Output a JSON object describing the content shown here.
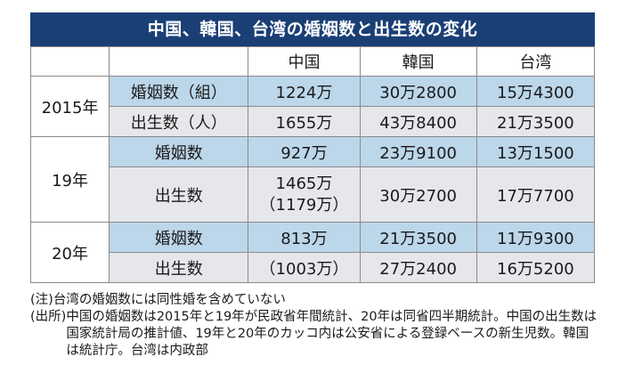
{
  "title": "中国、韓国、台湾の婚姻数と出生数の変化",
  "headers": {
    "cn": "中国",
    "kr": "韓国",
    "tw": "台湾"
  },
  "years": {
    "y2015": {
      "label": "2015年",
      "marriage": {
        "label": "婚姻数（組）",
        "cn": "1224万",
        "kr": "30万2800",
        "tw": "15万4300"
      },
      "birth": {
        "label": "出生数（人）",
        "cn": "1655万",
        "kr": "43万8400",
        "tw": "21万3500"
      }
    },
    "y19": {
      "label": "19年",
      "marriage": {
        "label": "婚姻数",
        "cn": "927万",
        "kr": "23万9100",
        "tw": "13万1500"
      },
      "birth": {
        "label": "出生数",
        "cn": "1465万",
        "cn_sub": "（1179万）",
        "kr": "30万2700",
        "tw": "17万7700"
      }
    },
    "y20": {
      "label": "20年",
      "marriage": {
        "label": "婚姻数",
        "cn": "813万",
        "kr": "21万3500",
        "tw": "11万9300"
      },
      "birth": {
        "label": "出生数",
        "cn": "（1003万）",
        "kr": "27万2400",
        "tw": "16万5200"
      }
    }
  },
  "notes": {
    "note_tag": "(注)",
    "note_text": "台湾の婚姻数には同性婚を含めていない",
    "source_tag": "(出所)",
    "source_text": "中国の婚姻数は2015年と19年が民政省年間統計、20年は同省四半期統計。中国の出生数は国家統計局の推計値、19年と20年のカッコ内は公安省による登録ベースの新生児数。韓国は統計庁。台湾は内政部"
  },
  "colors": {
    "title_bg": "#1a3f75",
    "row_blue": "#bcd6ea",
    "row_gray": "#e6e7ea"
  }
}
